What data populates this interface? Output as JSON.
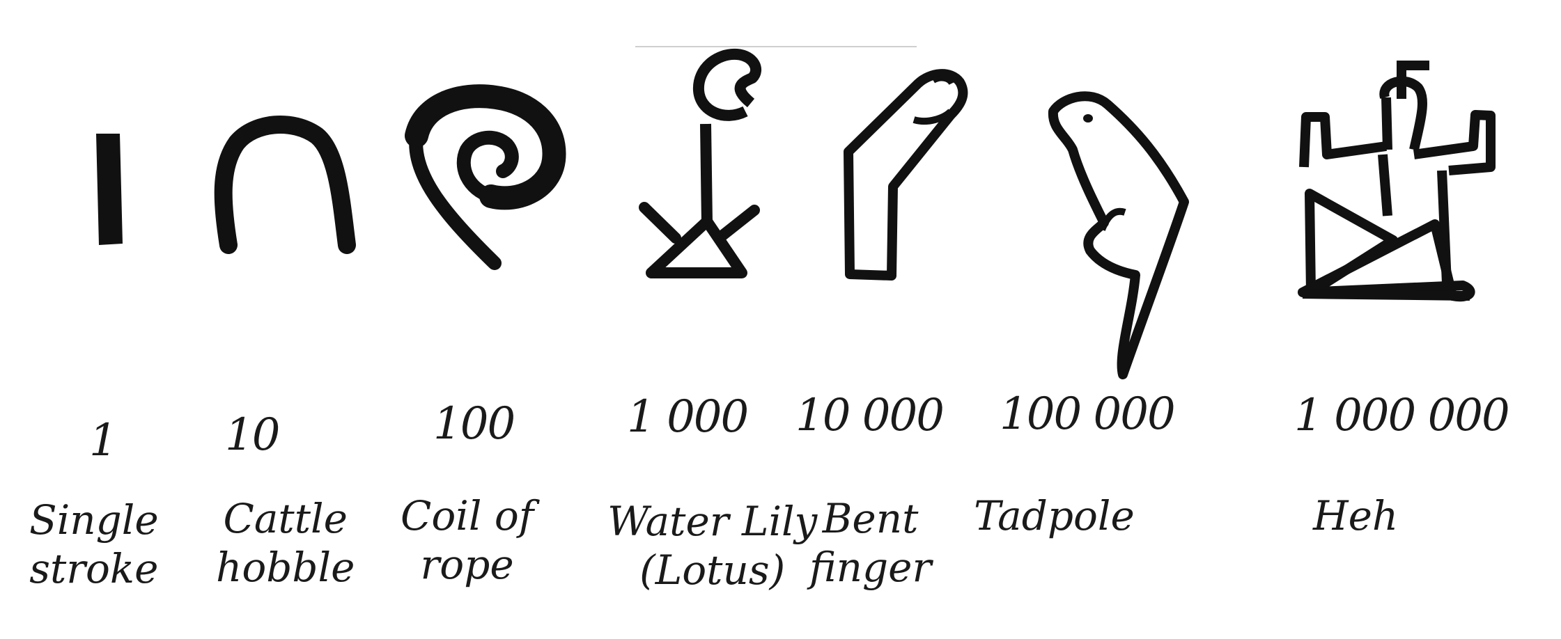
{
  "numerals": [
    {
      "value": "1",
      "name_line1": "Single",
      "name_line2": "stroke",
      "glyph": "single-stroke"
    },
    {
      "value": "10",
      "name_line1": "Cattle",
      "name_line2": "hobble",
      "glyph": "cattle-hobble"
    },
    {
      "value": "100",
      "name_line1": "Coil of",
      "name_line2": "rope",
      "glyph": "coil-of-rope"
    },
    {
      "value": "1 000",
      "name_line1": "Water Lily",
      "name_line2": "(Lotus)",
      "glyph": "water-lily"
    },
    {
      "value": "10 000",
      "name_line1": "Bent",
      "name_line2": "finger",
      "glyph": "bent-finger"
    },
    {
      "value": "100 000",
      "name_line1": "Tadpole",
      "name_line2": "",
      "glyph": "tadpole"
    },
    {
      "value": "1 000 000",
      "name_line1": "Heh",
      "name_line2": "",
      "glyph": "heh"
    }
  ]
}
